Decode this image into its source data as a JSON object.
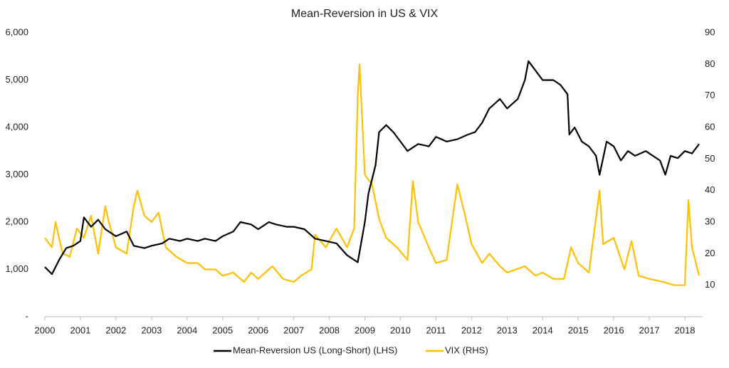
{
  "chart_data": {
    "type": "line",
    "title": "Mean-Reversion in US & VIX",
    "xlim": [
      2000,
      2018.5
    ],
    "xticks": [
      2000,
      2001,
      2002,
      2003,
      2004,
      2005,
      2006,
      2007,
      2008,
      2009,
      2010,
      2011,
      2012,
      2013,
      2014,
      2015,
      2016,
      2017,
      2018
    ],
    "ylim": [
      0,
      6000
    ],
    "yticks": [
      {
        "value": 0,
        "label": "-"
      },
      {
        "value": 1000,
        "label": "1,000"
      },
      {
        "value": 2000,
        "label": "2,000"
      },
      {
        "value": 3000,
        "label": "3,000"
      },
      {
        "value": 4000,
        "label": "4,000"
      },
      {
        "value": 5000,
        "label": "5,000"
      },
      {
        "value": 6000,
        "label": "6,000"
      }
    ],
    "y2lim": [
      0,
      90
    ],
    "y2ticks": [
      10,
      20,
      30,
      40,
      50,
      60,
      70,
      80,
      90
    ],
    "legend": "bottom",
    "series": [
      {
        "name": "VIX (RHS)",
        "color": "#ffc000",
        "axis": "y2",
        "x": [
          2000.0,
          2000.2,
          2000.3,
          2000.5,
          2000.7,
          2000.9,
          2001.1,
          2001.3,
          2001.5,
          2001.7,
          2001.8,
          2002.0,
          2002.3,
          2002.5,
          2002.6,
          2002.8,
          2003.0,
          2003.2,
          2003.4,
          2003.7,
          2004.0,
          2004.3,
          2004.5,
          2004.8,
          2005.0,
          2005.3,
          2005.6,
          2005.8,
          2006.0,
          2006.4,
          2006.7,
          2007.0,
          2007.2,
          2007.5,
          2007.6,
          2007.9,
          2008.2,
          2008.5,
          2008.7,
          2008.8,
          2008.85,
          2009.0,
          2009.2,
          2009.4,
          2009.6,
          2009.9,
          2010.2,
          2010.35,
          2010.5,
          2010.8,
          2011.0,
          2011.3,
          2011.6,
          2011.8,
          2012.0,
          2012.3,
          2012.5,
          2012.8,
          2013.0,
          2013.5,
          2013.8,
          2014.0,
          2014.3,
          2014.6,
          2014.8,
          2015.0,
          2015.3,
          2015.6,
          2015.7,
          2016.0,
          2016.3,
          2016.5,
          2016.7,
          2017.0,
          2017.4,
          2017.7,
          2018.0,
          2018.1,
          2018.2,
          2018.4
        ],
        "values": [
          25,
          22,
          30,
          20,
          19,
          28,
          25,
          32,
          20,
          35,
          30,
          22,
          20,
          35,
          40,
          32,
          30,
          33,
          22,
          19,
          17,
          17,
          15,
          15,
          13,
          14,
          11,
          14,
          12,
          16,
          12,
          11,
          13,
          15,
          26,
          22,
          28,
          22,
          28,
          70,
          80,
          45,
          42,
          31,
          25,
          22,
          18,
          43,
          30,
          22,
          17,
          18,
          42,
          33,
          23,
          17,
          20,
          16,
          14,
          16,
          13,
          14,
          12,
          12,
          22,
          17,
          14,
          40,
          23,
          25,
          15,
          24,
          13,
          12,
          11,
          10,
          10,
          37,
          22,
          13
        ]
      },
      {
        "name": "Mean-Reversion US (Long-Short) (LHS)",
        "color": "#000000",
        "x": [
          2000.0,
          2000.2,
          2000.4,
          2000.6,
          2000.8,
          2001.0,
          2001.1,
          2001.3,
          2001.5,
          2001.7,
          2002.0,
          2002.3,
          2002.5,
          2002.8,
          2003.0,
          2003.3,
          2003.5,
          2003.8,
          2004.0,
          2004.3,
          2004.5,
          2004.8,
          2005.0,
          2005.3,
          2005.5,
          2005.8,
          2006.0,
          2006.3,
          2006.5,
          2006.8,
          2007.0,
          2007.3,
          2007.6,
          2007.9,
          2008.2,
          2008.5,
          2008.8,
          2009.0,
          2009.1,
          2009.3,
          2009.4,
          2009.6,
          2009.8,
          2010.0,
          2010.2,
          2010.5,
          2010.8,
          2011.0,
          2011.3,
          2011.6,
          2011.9,
          2012.1,
          2012.3,
          2012.5,
          2012.8,
          2013.0,
          2013.3,
          2013.5,
          2013.6,
          2013.8,
          2014.0,
          2014.3,
          2014.5,
          2014.7,
          2014.75,
          2014.9,
          2015.1,
          2015.3,
          2015.5,
          2015.6,
          2015.8,
          2016.0,
          2016.2,
          2016.4,
          2016.6,
          2016.9,
          2017.1,
          2017.3,
          2017.45,
          2017.6,
          2017.8,
          2018.0,
          2018.2,
          2018.4
        ],
        "values": [
          1050,
          900,
          1200,
          1450,
          1500,
          1600,
          2100,
          1900,
          2050,
          1850,
          1700,
          1800,
          1500,
          1450,
          1500,
          1550,
          1650,
          1600,
          1650,
          1600,
          1650,
          1600,
          1700,
          1800,
          2000,
          1950,
          1850,
          2000,
          1950,
          1900,
          1900,
          1850,
          1650,
          1600,
          1550,
          1300,
          1150,
          2000,
          2600,
          3200,
          3900,
          4050,
          3900,
          3700,
          3500,
          3650,
          3600,
          3800,
          3700,
          3750,
          3850,
          3900,
          4100,
          4400,
          4600,
          4400,
          4600,
          5000,
          5400,
          5200,
          5000,
          5000,
          4900,
          4700,
          3850,
          4000,
          3700,
          3600,
          3400,
          3000,
          3700,
          3600,
          3300,
          3500,
          3400,
          3500,
          3400,
          3300,
          3000,
          3400,
          3350,
          3500,
          3450,
          3650
        ]
      }
    ]
  }
}
